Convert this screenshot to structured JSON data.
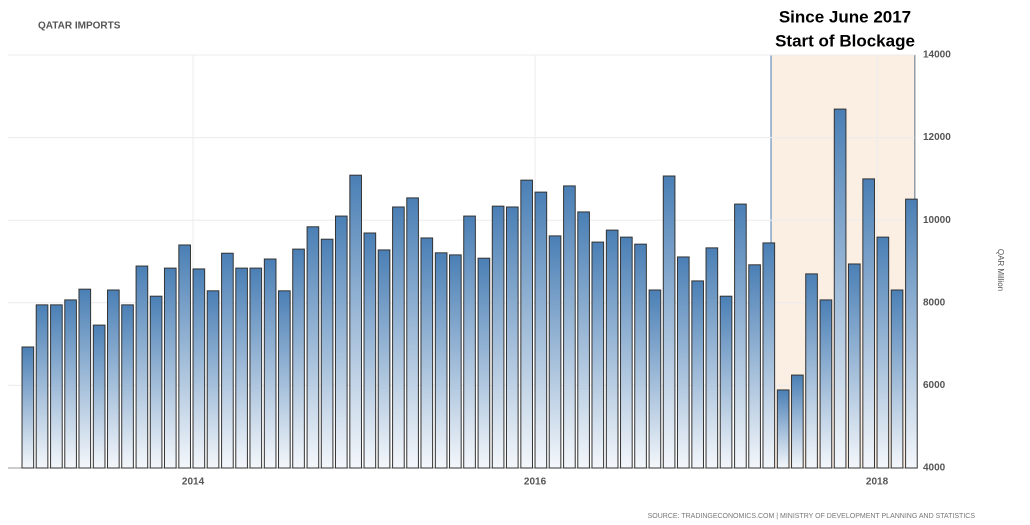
{
  "chart_data": {
    "type": "bar",
    "title": "QATAR IMPORTS",
    "y_label": "QAR Million",
    "source": "SOURCE: TRADINGECONOMICS.COM | MINISTRY OF DEVELOPMENT PLANNING AND STATISTICS",
    "annotations": [
      "Since June 2017",
      "Start of Blockage"
    ],
    "highlight_xlim": [
      2017.38,
      2018.22
    ],
    "x": [
      2013,
      2013.083,
      2013.167,
      2013.25,
      2013.333,
      2013.417,
      2013.5,
      2013.583,
      2013.667,
      2013.75,
      2013.833,
      2013.917,
      2014,
      2014.083,
      2014.167,
      2014.25,
      2014.333,
      2014.417,
      2014.5,
      2014.583,
      2014.667,
      2014.75,
      2014.833,
      2014.917,
      2015,
      2015.083,
      2015.167,
      2015.25,
      2015.333,
      2015.417,
      2015.5,
      2015.583,
      2015.667,
      2015.75,
      2015.833,
      2015.917,
      2016,
      2016.083,
      2016.167,
      2016.25,
      2016.333,
      2016.417,
      2016.5,
      2016.583,
      2016.667,
      2016.75,
      2016.833,
      2016.917,
      2017,
      2017.083,
      2017.167,
      2017.25,
      2017.333,
      2017.417,
      2017.5,
      2017.583,
      2017.667,
      2017.75,
      2017.833,
      2017.917,
      2018,
      2018.083,
      2018.167
    ],
    "values": [
      6930,
      7950,
      7950,
      8070,
      8330,
      7460,
      8310,
      7950,
      8890,
      8160,
      8840,
      9400,
      8820,
      8290,
      9200,
      8840,
      8840,
      9060,
      8290,
      9300,
      9840,
      9540,
      10100,
      11090,
      9690,
      9280,
      10320,
      10540,
      9570,
      9210,
      9160,
      10100,
      9080,
      10340,
      10320,
      10970,
      10680,
      9620,
      10830,
      10200,
      9470,
      9760,
      9590,
      9420,
      8310,
      11070,
      9110,
      8530,
      9330,
      8160,
      10390,
      8920,
      9450,
      5890,
      6250,
      8700,
      8070,
      12690,
      8940,
      11000,
      9590,
      8310,
      10510
    ],
    "color": "#4a7fb5",
    "xlim": [
      2012.918,
      2018.222
    ],
    "xticks": [
      2014,
      2016,
      2018
    ],
    "ylim": [
      4000,
      14000
    ],
    "yticks": [
      4000,
      6000,
      8000,
      10000,
      12000,
      14000
    ],
    "grid": true
  }
}
